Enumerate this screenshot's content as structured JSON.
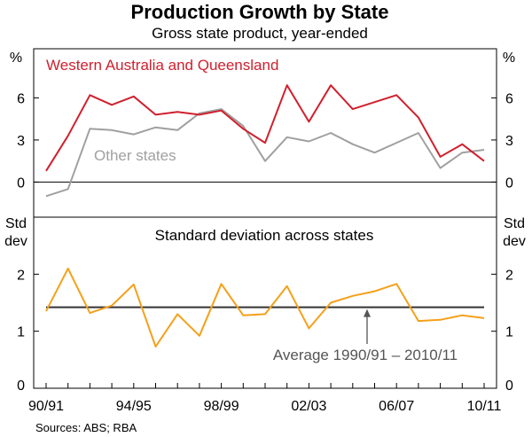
{
  "chart_data": {
    "type": "line",
    "title": "Production Growth by State",
    "subtitle": "Gross state product, year-ended",
    "x_tick_labels": [
      "90/91",
      "94/95",
      "98/99",
      "02/03",
      "06/07",
      "10/11"
    ],
    "categories": [
      "90/91",
      "91/92",
      "92/93",
      "93/94",
      "94/95",
      "95/96",
      "96/97",
      "97/98",
      "98/99",
      "99/00",
      "00/01",
      "01/02",
      "02/03",
      "03/04",
      "04/05",
      "05/06",
      "06/07",
      "07/08",
      "08/09",
      "09/10",
      "10/11"
    ],
    "panels": [
      {
        "id": "top",
        "unit_left": "%",
        "unit_right": "%",
        "ylim": [
          -2.5,
          9.5
        ],
        "yticks": [
          0,
          3,
          6
        ],
        "y_tick_labels": [
          "0",
          "3",
          "6"
        ],
        "series": [
          {
            "name": "Western Australia and Queensland",
            "color": "#d0202e",
            "values": [
              0.8,
              3.3,
              6.2,
              5.5,
              6.1,
              4.8,
              5.0,
              4.8,
              5.1,
              3.8,
              2.8,
              6.9,
              4.3,
              6.9,
              5.2,
              5.7,
              6.2,
              4.6,
              1.8,
              2.7,
              1.5
            ]
          },
          {
            "name": "Other states",
            "color": "#a0a0a0",
            "values": [
              -1.0,
              -0.5,
              3.8,
              3.7,
              3.4,
              3.9,
              3.7,
              4.9,
              5.2,
              4.0,
              1.5,
              3.2,
              2.9,
              3.5,
              2.7,
              2.1,
              2.8,
              3.5,
              1.0,
              2.1,
              2.3
            ]
          }
        ]
      },
      {
        "id": "bottom",
        "unit_left": "Std\ndev",
        "unit_right": "Std\ndev",
        "panel_title": "Standard deviation across states",
        "ylim": [
          0,
          3
        ],
        "yticks": [
          0,
          1,
          2
        ],
        "y_tick_labels": [
          "0",
          "1",
          "2"
        ],
        "series": [
          {
            "name": "Standard deviation across states",
            "color": "#f5a01a",
            "values": [
              1.35,
              2.1,
              1.32,
              1.45,
              1.82,
              0.73,
              1.3,
              0.92,
              1.83,
              1.28,
              1.3,
              1.79,
              1.05,
              1.5,
              1.62,
              1.7,
              1.83,
              1.18,
              1.2,
              1.28,
              1.23
            ]
          }
        ],
        "reference_line": {
          "label": "Average 1990/91 – 2010/11",
          "value": 1.42,
          "color": "#333333"
        }
      }
    ],
    "source": "Sources: ABS; RBA"
  }
}
